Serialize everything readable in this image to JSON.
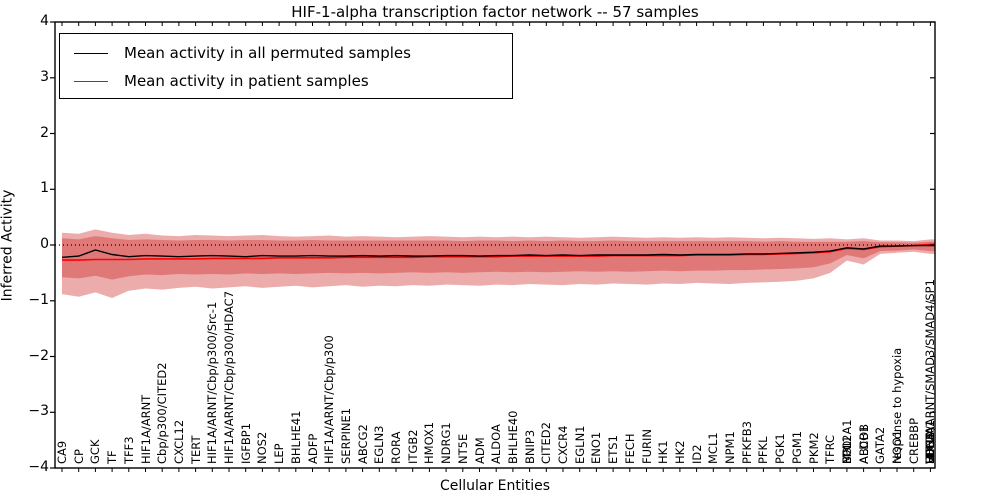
{
  "chart_data": {
    "type": "line",
    "title": "HIF-1-alpha transcription factor network -- 57 samples",
    "xlabel": "Cellular Entities",
    "ylabel": "Inferred Activity",
    "ylim": [
      -4,
      4
    ],
    "yticks": [
      "4",
      "3",
      "2",
      "1",
      "0",
      "−1",
      "−2",
      "−3",
      "−4"
    ],
    "grid": false,
    "zero_line": {
      "style": "dotted",
      "color": "#000000",
      "y": 0
    },
    "legend": {
      "position": "upper left",
      "entries": [
        {
          "label": "Mean activity in all permuted samples",
          "color": "#000000"
        },
        {
          "label": "Mean activity in patient samples",
          "color": "#ff0000"
        }
      ]
    },
    "band_color": "#cc2525",
    "band_opacity": 0.38,
    "entities": [
      [
        "CA9"
      ],
      [
        "CP"
      ],
      [
        "GCK"
      ],
      [
        "TF"
      ],
      [
        "TFF3"
      ],
      [
        "HIF1A/ARNT"
      ],
      [
        "Cbp/p300/CITED2"
      ],
      [
        "CXCL12"
      ],
      [
        "TERT"
      ],
      [
        "HIF1A/ARNT/Cbp/p300/Src-1"
      ],
      [
        "HIF1A/ARNT/Cbp/p300/HDAC7"
      ],
      [
        "IGFBP1"
      ],
      [
        "NOS2"
      ],
      [
        "LEP"
      ],
      [
        "BHLHE41"
      ],
      [
        "ADFP"
      ],
      [
        "HIF1A/ARNT/Cbp/p300"
      ],
      [
        "SERPINE1"
      ],
      [
        "ABCG2"
      ],
      [
        "EGLN3"
      ],
      [
        "RORA"
      ],
      [
        "ITGB2"
      ],
      [
        "HMOX1"
      ],
      [
        "NDRG1"
      ],
      [
        "NT5E"
      ],
      [
        "ADM"
      ],
      [
        "ALDOA"
      ],
      [
        "BHLHE40"
      ],
      [
        "BNIP3"
      ],
      [
        "CITED2"
      ],
      [
        "CXCR4"
      ],
      [
        "EGLN1"
      ],
      [
        "ENO1"
      ],
      [
        "ETS1"
      ],
      [
        "FECH"
      ],
      [
        "FURIN"
      ],
      [
        "HK1"
      ],
      [
        "HK2"
      ],
      [
        "ID2"
      ],
      [
        "MCL1"
      ],
      [
        "NPM1"
      ],
      [
        "PFKFB3"
      ],
      [
        "PFKL"
      ],
      [
        "PGK1"
      ],
      [
        "PGM1"
      ],
      [
        "PKM2"
      ],
      [
        "TFRC"
      ],
      [
        "BCL2A1",
        "EPO",
        "MXI1"
      ],
      [
        "ABCB1",
        "ALDOB"
      ],
      [
        "GATA2"
      ],
      [
        "NQO1",
        "response to hypoxia"
      ],
      [
        "CREBBP"
      ],
      [
        "HIF1A/ARNT/SMAD3/SMAD4/SP1",
        "VEGFA",
        "LDHA",
        "SLC2A1",
        "EDN1"
      ]
    ],
    "series": [
      {
        "name": "Mean activity in all permuted samples",
        "color": "#000000",
        "values": [
          -0.22,
          -0.2,
          -0.09,
          -0.17,
          -0.21,
          -0.19,
          -0.2,
          -0.21,
          -0.2,
          -0.19,
          -0.2,
          -0.21,
          -0.19,
          -0.2,
          -0.2,
          -0.19,
          -0.2,
          -0.2,
          -0.19,
          -0.2,
          -0.19,
          -0.2,
          -0.2,
          -0.19,
          -0.19,
          -0.2,
          -0.19,
          -0.19,
          -0.18,
          -0.19,
          -0.18,
          -0.19,
          -0.18,
          -0.18,
          -0.18,
          -0.18,
          -0.17,
          -0.18,
          -0.17,
          -0.17,
          -0.17,
          -0.16,
          -0.16,
          -0.15,
          -0.14,
          -0.13,
          -0.11,
          -0.05,
          -0.07,
          -0.02,
          -0.02,
          -0.01,
          -0.01
        ],
        "band_top": [
          0.12,
          0.1,
          0.16,
          0.12,
          0.09,
          0.1,
          0.09,
          0.08,
          0.09,
          0.09,
          0.08,
          0.09,
          0.09,
          0.08,
          0.08,
          0.09,
          0.08,
          0.08,
          0.08,
          0.08,
          0.08,
          0.08,
          0.08,
          0.08,
          0.07,
          0.08,
          0.08,
          0.07,
          0.08,
          0.07,
          0.08,
          0.07,
          0.07,
          0.08,
          0.07,
          0.07,
          0.07,
          0.07,
          0.07,
          0.07,
          0.07,
          0.07,
          0.06,
          0.07,
          0.06,
          0.06,
          0.06,
          0.06,
          0.07,
          0.05,
          0.05,
          0.04,
          0.06
        ],
        "band_bottom": [
          -0.58,
          -0.6,
          -0.55,
          -0.62,
          -0.56,
          -0.53,
          -0.54,
          -0.52,
          -0.53,
          -0.52,
          -0.53,
          -0.51,
          -0.52,
          -0.51,
          -0.52,
          -0.51,
          -0.5,
          -0.51,
          -0.5,
          -0.51,
          -0.5,
          -0.49,
          -0.5,
          -0.49,
          -0.5,
          -0.49,
          -0.48,
          -0.49,
          -0.48,
          -0.49,
          -0.48,
          -0.47,
          -0.48,
          -0.47,
          -0.48,
          -0.47,
          -0.46,
          -0.47,
          -0.46,
          -0.46,
          -0.45,
          -0.45,
          -0.44,
          -0.43,
          -0.42,
          -0.4,
          -0.33,
          -0.18,
          -0.24,
          -0.11,
          -0.1,
          -0.08,
          -0.11
        ]
      },
      {
        "name": "Mean activity in patient samples",
        "color": "#ff0000",
        "values": [
          -0.27,
          -0.27,
          -0.26,
          -0.26,
          -0.26,
          -0.25,
          -0.25,
          -0.25,
          -0.25,
          -0.24,
          -0.24,
          -0.24,
          -0.24,
          -0.23,
          -0.23,
          -0.23,
          -0.23,
          -0.22,
          -0.22,
          -0.22,
          -0.22,
          -0.22,
          -0.21,
          -0.21,
          -0.21,
          -0.21,
          -0.21,
          -0.2,
          -0.2,
          -0.2,
          -0.2,
          -0.2,
          -0.2,
          -0.19,
          -0.19,
          -0.19,
          -0.19,
          -0.19,
          -0.18,
          -0.18,
          -0.18,
          -0.17,
          -0.17,
          -0.16,
          -0.15,
          -0.14,
          -0.12,
          -0.06,
          -0.08,
          -0.03,
          -0.02,
          -0.01,
          0.01
        ],
        "band_top": [
          0.22,
          0.2,
          0.28,
          0.22,
          0.18,
          0.2,
          0.17,
          0.16,
          0.18,
          0.17,
          0.16,
          0.17,
          0.18,
          0.16,
          0.15,
          0.16,
          0.17,
          0.15,
          0.16,
          0.15,
          0.14,
          0.15,
          0.16,
          0.15,
          0.14,
          0.15,
          0.14,
          0.15,
          0.14,
          0.15,
          0.14,
          0.13,
          0.14,
          0.15,
          0.14,
          0.13,
          0.14,
          0.13,
          0.14,
          0.13,
          0.14,
          0.13,
          0.12,
          0.13,
          0.12,
          0.11,
          0.12,
          0.1,
          0.12,
          0.08,
          0.08,
          0.07,
          0.1
        ],
        "band_bottom": [
          -0.88,
          -0.93,
          -0.85,
          -0.95,
          -0.82,
          -0.78,
          -0.8,
          -0.77,
          -0.75,
          -0.78,
          -0.76,
          -0.74,
          -0.77,
          -0.75,
          -0.73,
          -0.76,
          -0.74,
          -0.72,
          -0.75,
          -0.73,
          -0.74,
          -0.72,
          -0.73,
          -0.71,
          -0.72,
          -0.73,
          -0.71,
          -0.72,
          -0.7,
          -0.71,
          -0.72,
          -0.7,
          -0.71,
          -0.69,
          -0.7,
          -0.71,
          -0.69,
          -0.7,
          -0.68,
          -0.69,
          -0.7,
          -0.68,
          -0.67,
          -0.66,
          -0.64,
          -0.6,
          -0.5,
          -0.28,
          -0.35,
          -0.16,
          -0.14,
          -0.12,
          -0.16
        ]
      }
    ]
  }
}
